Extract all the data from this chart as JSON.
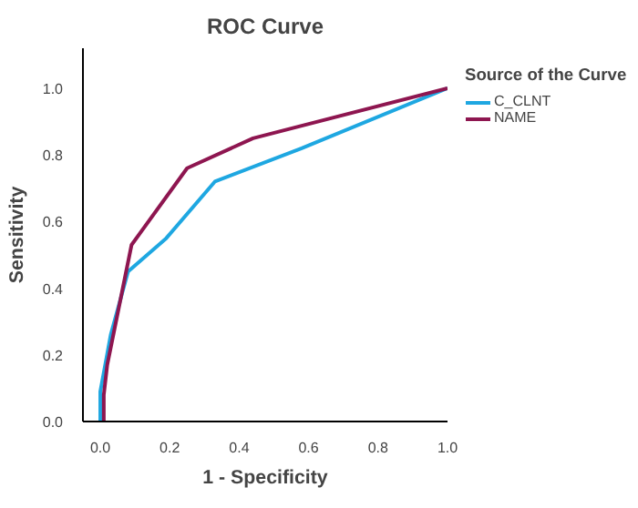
{
  "chart_data": {
    "type": "line",
    "title": "ROC Curve",
    "xlabel": "1 - Specificity",
    "ylabel": "Sensitivity",
    "legend_title": "Source of the Curve",
    "legend": "top right",
    "grid": false,
    "xlim": [
      -0.05,
      1.0
    ],
    "ylim": [
      0,
      1.12
    ],
    "xticks": [
      {
        "value": 0,
        "label": "0.0"
      },
      0.2,
      0.4,
      0.6,
      0.8,
      {
        "value": 1,
        "label": "1.0"
      }
    ],
    "yticks": [
      {
        "value": 0,
        "label": "0.0"
      },
      0.2,
      0.4,
      0.6,
      0.8,
      {
        "value": 1,
        "label": "1.0"
      }
    ],
    "series": [
      {
        "name": "C_CLNT",
        "color": "#1ea7e1",
        "x": [
          0,
          0,
          0.03,
          0.08,
          0.19,
          0.33,
          0.58,
          1
        ],
        "values": [
          0,
          0.09,
          0.26,
          0.45,
          0.55,
          0.72,
          0.82,
          1
        ]
      },
      {
        "name": "NAME",
        "color": "#8e1650",
        "x": [
          0.01,
          0.01,
          0.02,
          0.09,
          0.25,
          0.44,
          1
        ],
        "values": [
          0,
          0.08,
          0.17,
          0.53,
          0.76,
          0.85,
          1
        ]
      }
    ]
  }
}
